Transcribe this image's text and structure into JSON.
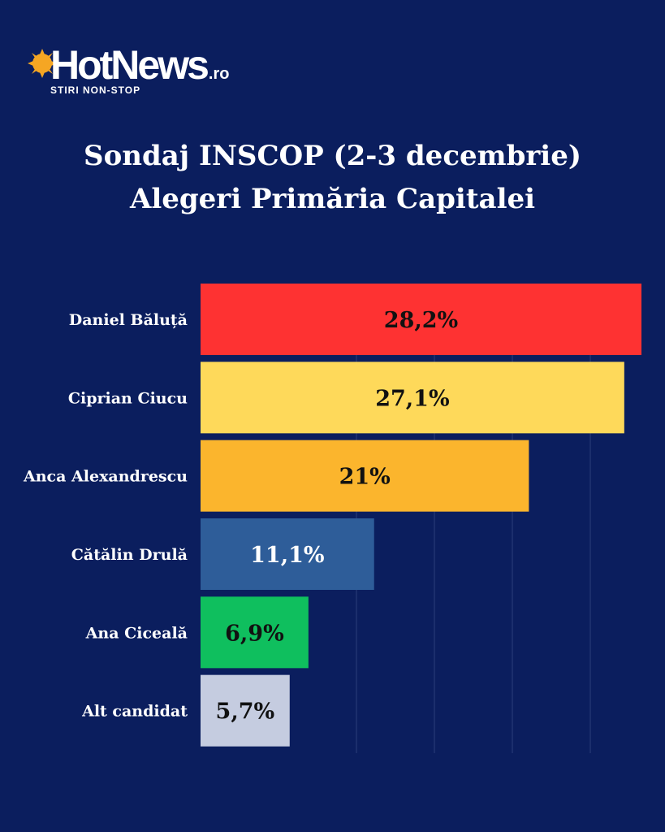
{
  "logo": {
    "brand": "HotNews",
    "brand_suffix": ".ro",
    "tagline": "STIRI NON-STOP"
  },
  "title": {
    "line1": "Sondaj INSCOP (2-3 decembrie)",
    "line2": "Alegeri Primăria Capitalei"
  },
  "chart_data": {
    "type": "bar",
    "orientation": "horizontal",
    "categories": [
      "Daniel Băluță",
      "Ciprian Ciucu",
      "Anca Alexandrescu",
      "Cătălin Drulă",
      "Ana Ciceală",
      "Alt candidat"
    ],
    "values": [
      28.2,
      27.1,
      21,
      11.1,
      6.9,
      5.7
    ],
    "data_labels": [
      "28,2%",
      "27,1%",
      "21%",
      "11,1%",
      "6,9%",
      "5,7%"
    ],
    "bar_colors": [
      "#fe3232",
      "#fed95a",
      "#fbb52d",
      "#2e5d99",
      "#0fbf5e",
      "#c5cce0"
    ],
    "label_colors": [
      "#111111",
      "#111111",
      "#111111",
      "#ffffff",
      "#111111",
      "#111111"
    ],
    "xlim": [
      0,
      28.2
    ],
    "grid": true,
    "legend": "none"
  }
}
